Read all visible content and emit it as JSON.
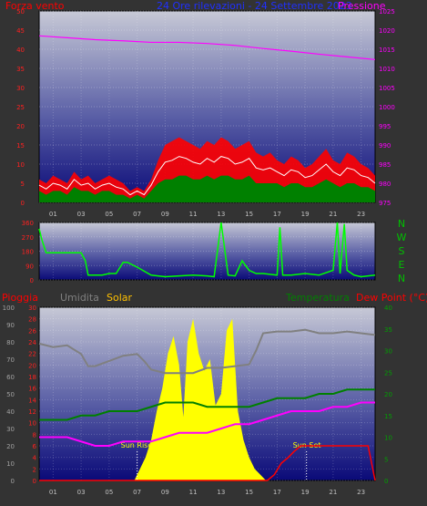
{
  "header": {
    "wind_label": "Forza vento",
    "date_label": "24 Ore rilevazioni - 24 Settembre 2023",
    "pressure_label": "Pressione"
  },
  "bottom_header": {
    "rain_label": "Pioggia",
    "humidity_label": "Umidita",
    "solar_label": "Solar",
    "temperature_label": "Temperatura",
    "dewpoint_label": "Dew Point (°C)"
  },
  "compass": [
    "N",
    "W",
    "S",
    "E",
    "N"
  ],
  "annotations": {
    "sunrise": "Sun Rise",
    "sunset": "Sun Set"
  },
  "colors": {
    "wind_gust": "#ff0000",
    "wind_avg": "#008000",
    "wind_mid": "#ffffff",
    "pressure": "#ff00ff",
    "direction": "#00ff00",
    "rain": "#ff0000",
    "humidity": "#808080",
    "solar": "#ffff00",
    "temperature": "#008000",
    "dewpoint": "#ff00ff",
    "plot_top": "#c7c9d6",
    "plot_bottom": "#0a0a78"
  },
  "chart_data": [
    {
      "type": "line",
      "id": "wind-pressure",
      "x_ticks": [
        "01",
        "03",
        "05",
        "07",
        "09",
        "11",
        "13",
        "15",
        "17",
        "19",
        "21",
        "23"
      ],
      "y_left_ticks": [
        0,
        5,
        10,
        15,
        20,
        25,
        30,
        35,
        40,
        45,
        50
      ],
      "y_left_range": [
        0,
        50
      ],
      "y_right_ticks": [
        975,
        980,
        985,
        990,
        995,
        1000,
        1005,
        1010,
        1015,
        1020,
        1025
      ],
      "y_right_range": [
        975,
        1025
      ],
      "x_range": [
        0,
        24
      ],
      "series": [
        {
          "name": "gust",
          "x": [
            0,
            0.5,
            1,
            1.5,
            2,
            2.5,
            3,
            3.5,
            4,
            4.5,
            5,
            5.5,
            6,
            6.5,
            7,
            7.5,
            8,
            8.5,
            9,
            9.5,
            10,
            10.5,
            11,
            11.5,
            12,
            12.5,
            13,
            13.5,
            14,
            14.5,
            15,
            15.5,
            16,
            16.5,
            17,
            17.5,
            18,
            18.5,
            19,
            19.5,
            20,
            20.5,
            21,
            21.5,
            22,
            22.5,
            23,
            23.5,
            24
          ],
          "y": [
            6,
            5,
            7,
            6,
            5,
            8,
            6,
            7,
            5,
            6,
            7,
            6,
            5,
            3,
            4,
            3,
            6,
            11,
            15,
            16,
            17,
            16,
            15,
            14,
            16,
            15,
            17,
            16,
            14,
            15,
            16,
            13,
            12,
            13,
            11,
            10,
            12,
            11,
            9,
            10,
            12,
            14,
            11,
            10,
            13,
            12,
            10,
            9,
            7
          ]
        },
        {
          "name": "average",
          "x": [
            0,
            0.5,
            1,
            1.5,
            2,
            2.5,
            3,
            3.5,
            4,
            4.5,
            5,
            5.5,
            6,
            6.5,
            7,
            7.5,
            8,
            8.5,
            9,
            9.5,
            10,
            10.5,
            11,
            11.5,
            12,
            12.5,
            13,
            13.5,
            14,
            14.5,
            15,
            15.5,
            16,
            16.5,
            17,
            17.5,
            18,
            18.5,
            19,
            19.5,
            20,
            20.5,
            21,
            21.5,
            22,
            22.5,
            23,
            23.5,
            24
          ],
          "y": [
            3,
            2,
            3,
            3,
            2,
            4,
            3,
            3,
            2,
            3,
            3,
            2,
            2,
            1,
            2,
            1,
            3,
            5,
            6,
            6,
            7,
            7,
            6,
            6,
            7,
            6,
            7,
            7,
            6,
            6,
            7,
            5,
            5,
            5,
            5,
            4,
            5,
            5,
            4,
            4,
            5,
            6,
            5,
            4,
            5,
            5,
            4,
            4,
            3
          ]
        },
        {
          "name": "pressure",
          "x": [
            0,
            2,
            4,
            6,
            8,
            10,
            12,
            14,
            16,
            18,
            20,
            22,
            24
          ],
          "y": [
            1018.5,
            1018,
            1017.5,
            1017.2,
            1016.8,
            1016.8,
            1016.5,
            1016,
            1015.2,
            1014.5,
            1013.7,
            1013,
            1012.3
          ]
        }
      ]
    },
    {
      "type": "line",
      "id": "wind-direction",
      "x_ticks": [
        "01",
        "03",
        "05",
        "07",
        "09",
        "11",
        "13",
        "15",
        "17",
        "19",
        "21",
        "23"
      ],
      "y_ticks": [
        0,
        90,
        180,
        270,
        360
      ],
      "y_range": [
        0,
        360
      ],
      "x_range": [
        0,
        24
      ],
      "series": [
        {
          "name": "direction",
          "x": [
            0,
            0.2,
            0.5,
            1,
            2,
            3,
            3.3,
            3.5,
            4.5,
            5,
            5.5,
            6,
            6.3,
            7,
            8,
            9,
            10,
            11,
            12,
            12.5,
            13,
            13.5,
            14,
            14.5,
            15,
            15.5,
            16,
            17,
            17.2,
            17.4,
            18,
            19,
            20,
            21,
            21.3,
            21.5,
            21.8,
            22,
            22.5,
            23,
            23.5,
            24
          ],
          "y": [
            320,
            250,
            170,
            170,
            170,
            170,
            120,
            30,
            30,
            40,
            40,
            110,
            110,
            80,
            30,
            20,
            25,
            30,
            25,
            20,
            360,
            30,
            25,
            120,
            60,
            40,
            40,
            30,
            330,
            30,
            30,
            40,
            30,
            60,
            360,
            40,
            350,
            60,
            30,
            20,
            25,
            30
          ]
        }
      ]
    },
    {
      "type": "line",
      "id": "rain-humidity-solar-temp",
      "x_ticks": [
        "01",
        "03",
        "05",
        "07",
        "09",
        "11",
        "13",
        "15",
        "17",
        "19",
        "21",
        "23"
      ],
      "y_left_ticks": [
        0,
        10,
        20,
        30,
        40,
        50,
        60,
        70,
        80,
        90,
        100
      ],
      "y_left_range": [
        0,
        100
      ],
      "y_rain_ticks": [
        0,
        2,
        4,
        6,
        8,
        10,
        12,
        14,
        16,
        18,
        20,
        22,
        24,
        26,
        28,
        30
      ],
      "y_rain_range": [
        0,
        30
      ],
      "y_right_ticks": [
        0,
        5,
        10,
        15,
        20,
        25,
        30,
        35,
        40
      ],
      "y_right_range": [
        0,
        40
      ],
      "x_range": [
        0,
        24
      ],
      "series": [
        {
          "name": "humidity",
          "x": [
            0,
            1,
            2,
            3,
            3.5,
            4,
            5,
            6,
            7,
            7.5,
            8,
            9,
            10,
            11,
            12,
            13,
            14,
            15,
            15.5,
            16,
            17,
            18,
            19,
            20,
            21,
            22,
            23,
            24
          ],
          "y": [
            79,
            77,
            78,
            73,
            66,
            66,
            69,
            72,
            73,
            69,
            64,
            62,
            62,
            62,
            65,
            65,
            66,
            67,
            75,
            85,
            86,
            86,
            87,
            85,
            85,
            86,
            85,
            84
          ]
        },
        {
          "name": "temperature",
          "x": [
            0,
            1,
            2,
            3,
            4,
            5,
            6,
            7,
            8,
            9,
            10,
            11,
            12,
            13,
            14,
            15,
            16,
            17,
            18,
            19,
            20,
            21,
            22,
            23,
            24
          ],
          "y": [
            14,
            14,
            14,
            15,
            15,
            16,
            16,
            16,
            17,
            18,
            18,
            18,
            17,
            17,
            17,
            17,
            18,
            19,
            19,
            19,
            20,
            20,
            21,
            21,
            21
          ]
        },
        {
          "name": "dewpoint",
          "x": [
            0,
            1,
            2,
            3,
            4,
            5,
            6,
            7,
            8,
            9,
            10,
            11,
            12,
            13,
            14,
            15,
            16,
            17,
            18,
            19,
            20,
            21,
            22,
            23,
            24
          ],
          "y": [
            10,
            10,
            10,
            9,
            8,
            8,
            9,
            9,
            9,
            10,
            11,
            11,
            11,
            12,
            13,
            13,
            14,
            15,
            16,
            16,
            16,
            17,
            17,
            18,
            18
          ]
        },
        {
          "name": "solar",
          "x": [
            0,
            6.8,
            7.2,
            7.6,
            8,
            8.4,
            8.8,
            9.2,
            9.6,
            10,
            10.3,
            10.6,
            11,
            11.4,
            11.8,
            12.2,
            12.6,
            13,
            13.4,
            13.8,
            14.2,
            14.6,
            15,
            15.4,
            15.8,
            16.2,
            16.6,
            17,
            24
          ],
          "y": [
            0,
            0,
            2,
            4,
            7,
            12,
            16,
            22,
            25,
            20,
            11,
            24,
            28,
            22,
            19,
            21,
            13,
            15,
            26,
            28,
            12,
            7,
            4,
            2,
            1,
            0,
            0,
            0,
            0
          ]
        },
        {
          "name": "rain",
          "x": [
            0,
            16.3,
            16.8,
            17.3,
            17.8,
            18.2,
            18.7,
            23.5,
            24
          ],
          "y": [
            0,
            0,
            1,
            3,
            4,
            5,
            6,
            6,
            0
          ]
        }
      ],
      "markers": [
        {
          "label": "Sun Rise",
          "x": 7.0
        },
        {
          "label": "Sun Set",
          "x": 19.1
        }
      ]
    }
  ]
}
